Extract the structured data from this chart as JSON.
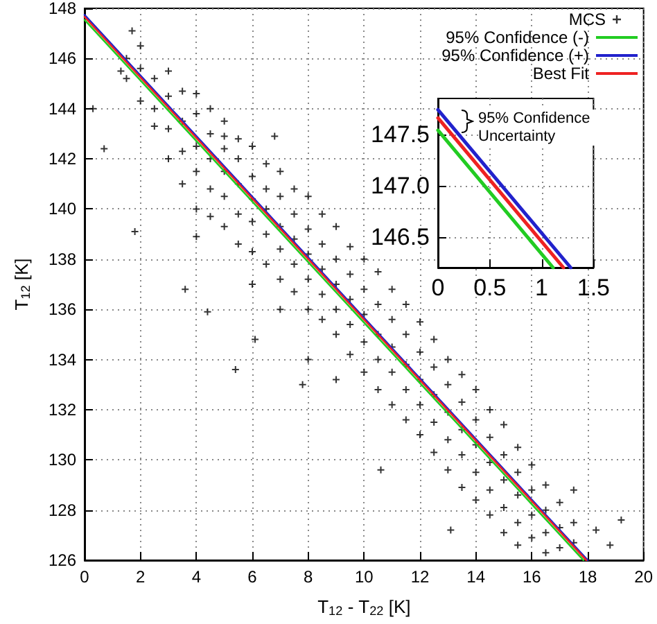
{
  "chart_data": [
    {
      "type": "scatter",
      "xlabel": "T$_{12}$ - T$_{22}$ [K]",
      "ylabel": "T$_{12}$ [K]",
      "xlim": [
        0,
        20
      ],
      "xticks": [
        0,
        2,
        4,
        6,
        8,
        10,
        12,
        14,
        16,
        18,
        20
      ],
      "ylim": [
        126,
        148
      ],
      "yticks": [
        126,
        128,
        130,
        132,
        134,
        136,
        138,
        140,
        142,
        144,
        146,
        148
      ],
      "grid": true,
      "legend": "top right",
      "series": [
        {
          "name": "MCS",
          "color": "#000000",
          "marker": "cross",
          "x": [
            1.5,
            1.5,
            2.0,
            2.0,
            2.0,
            2.5,
            2.5,
            2.5,
            3.0,
            3.0,
            3.0,
            3.0,
            3.5,
            3.5,
            3.5,
            3.5,
            4.0,
            4.0,
            4.0,
            4.0,
            4.0,
            4.5,
            4.5,
            4.5,
            4.5,
            4.5,
            5.0,
            5.0,
            5.0,
            5.0,
            5.0,
            5.0,
            5.5,
            5.5,
            5.5,
            5.5,
            5.5,
            6.0,
            6.0,
            6.0,
            6.0,
            6.0,
            6.0,
            6.8,
            6.5,
            6.5,
            6.5,
            6.5,
            6.5,
            7.0,
            7.0,
            7.0,
            7.0,
            7.0,
            7.0,
            7.5,
            7.5,
            7.5,
            7.5,
            7.5,
            8.0,
            8.0,
            8.0,
            8.0,
            8.0,
            8.0,
            8.5,
            8.5,
            8.5,
            8.5,
            8.5,
            9.0,
            9.0,
            9.0,
            9.0,
            9.0,
            9.0,
            9.5,
            9.5,
            9.5,
            9.5,
            9.5,
            10.0,
            10.0,
            10.0,
            10.0,
            10.0,
            10.5,
            10.5,
            10.5,
            10.5,
            10.5,
            11.0,
            11.0,
            11.0,
            11.0,
            11.0,
            11.5,
            11.5,
            11.5,
            11.5,
            11.5,
            12.0,
            12.0,
            12.0,
            12.0,
            12.0,
            12.5,
            12.5,
            12.5,
            12.5,
            12.5,
            13.0,
            13.0,
            13.0,
            13.0,
            13.0,
            13.5,
            13.5,
            13.5,
            13.5,
            13.5,
            14.0,
            14.0,
            14.0,
            14.0,
            14.0,
            14.5,
            14.5,
            14.5,
            14.5,
            14.5,
            15.0,
            15.0,
            15.0,
            15.0,
            15.0,
            15.5,
            15.5,
            15.5,
            15.5,
            15.5,
            16.0,
            16.0,
            16.0,
            16.0,
            16.5,
            16.5,
            16.5,
            16.5,
            17.0,
            17.0,
            17.0,
            17.5,
            17.5,
            1.7,
            1.3,
            0.3,
            0.7,
            1.8,
            4.4,
            5.4,
            6.1,
            4.0,
            10.6,
            13.1,
            19.2,
            18.8,
            18.3,
            3.6,
            7.8,
            17.5
          ],
          "values": [
            146.0,
            145.2,
            145.6,
            144.3,
            146.5,
            145.2,
            144.0,
            143.3,
            145.5,
            144.5,
            143.2,
            142.0,
            144.7,
            143.5,
            142.3,
            141.0,
            144.6,
            143.8,
            142.5,
            141.5,
            140.0,
            144.0,
            143.0,
            142.0,
            140.8,
            139.7,
            143.5,
            142.4,
            141.5,
            140.5,
            139.3,
            142.9,
            142.8,
            142.0,
            141.0,
            139.8,
            138.6,
            142.5,
            141.3,
            140.4,
            139.5,
            138.3,
            137.0,
            142.9,
            141.8,
            140.8,
            140.0,
            139.0,
            137.8,
            141.5,
            140.5,
            139.3,
            138.4,
            137.2,
            136.0,
            140.8,
            139.8,
            138.8,
            137.8,
            136.7,
            140.5,
            139.2,
            138.2,
            137.2,
            136.0,
            134.0,
            139.8,
            138.6,
            137.6,
            136.6,
            135.6,
            139.3,
            138.0,
            137.0,
            136.0,
            135.0,
            133.2,
            138.5,
            137.4,
            136.4,
            135.4,
            134.2,
            138.0,
            136.8,
            135.8,
            134.7,
            133.5,
            137.5,
            136.2,
            135.0,
            134.0,
            132.8,
            136.8,
            135.6,
            134.5,
            133.5,
            132.2,
            136.2,
            135.0,
            133.8,
            132.8,
            131.6,
            135.5,
            134.3,
            133.2,
            132.2,
            131.0,
            134.8,
            133.7,
            132.6,
            131.5,
            130.3,
            134.0,
            133.0,
            131.9,
            130.8,
            129.6,
            133.4,
            132.3,
            131.2,
            130.2,
            128.9,
            132.8,
            131.6,
            130.6,
            129.5,
            128.4,
            132.0,
            130.9,
            129.9,
            128.8,
            127.8,
            131.4,
            130.2,
            129.2,
            128.1,
            127.1,
            130.5,
            129.5,
            128.6,
            127.5,
            126.6,
            129.8,
            128.8,
            127.8,
            126.9,
            129.0,
            128.0,
            127.1,
            126.3,
            128.3,
            127.3,
            126.5,
            127.5,
            126.7,
            147.1,
            145.5,
            144.0,
            142.4,
            139.1,
            135.9,
            133.6,
            134.8,
            138.9,
            129.6,
            127.2,
            127.6,
            126.6,
            127.2,
            136.8,
            133.0,
            128.8
          ]
        },
        {
          "name": "95% Confidence (-)",
          "type": "line",
          "color": "#22cc22",
          "x": [
            0,
            17.85
          ],
          "values": [
            147.54,
            126
          ]
        },
        {
          "name": "95% Confidence (+)",
          "type": "line",
          "color": "#2222cc",
          "x": [
            0,
            18.0
          ],
          "values": [
            147.74,
            126
          ]
        },
        {
          "name": "Best Fit",
          "type": "line",
          "color": "#ee2222",
          "x": [
            0,
            17.95
          ],
          "values": [
            147.66,
            126
          ]
        }
      ]
    },
    {
      "type": "line",
      "xlim": [
        0,
        1.5
      ],
      "xticks": [
        0,
        0.5,
        1,
        1.5
      ],
      "ylim": [
        146.2,
        147.85
      ],
      "yticks": [
        146.5,
        {
          "value": 147,
          "label": "147.0"
        },
        147.5
      ],
      "grid": true,
      "annotations": [
        "95% Confidence Uncertainty"
      ],
      "series": [
        {
          "color": "#22cc22",
          "x": [
            0,
            1.11
          ],
          "values": [
            147.54,
            146.2
          ]
        },
        {
          "color": "#2222cc",
          "x": [
            0,
            1.28
          ],
          "values": [
            147.74,
            146.2
          ]
        },
        {
          "color": "#ee2222",
          "x": [
            0,
            1.21
          ],
          "values": [
            147.66,
            146.2
          ]
        }
      ]
    }
  ]
}
